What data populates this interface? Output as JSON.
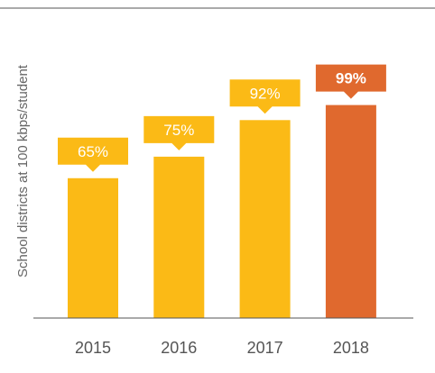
{
  "chart_data": {
    "type": "bar",
    "categories": [
      "2015",
      "2016",
      "2017",
      "2018"
    ],
    "values": [
      65,
      75,
      92,
      99
    ],
    "data_labels": [
      "65%",
      "75%",
      "92%",
      "99%"
    ],
    "title": "",
    "xlabel": "",
    "ylabel": "School districts at 100 kbps/student",
    "ylim": [
      0,
      100
    ],
    "grid": false,
    "colors": {
      "default": "#FBBA16",
      "highlight": "#E0692E",
      "axis": "#555555",
      "top_rule": "#555555"
    },
    "highlight_index": 3
  }
}
